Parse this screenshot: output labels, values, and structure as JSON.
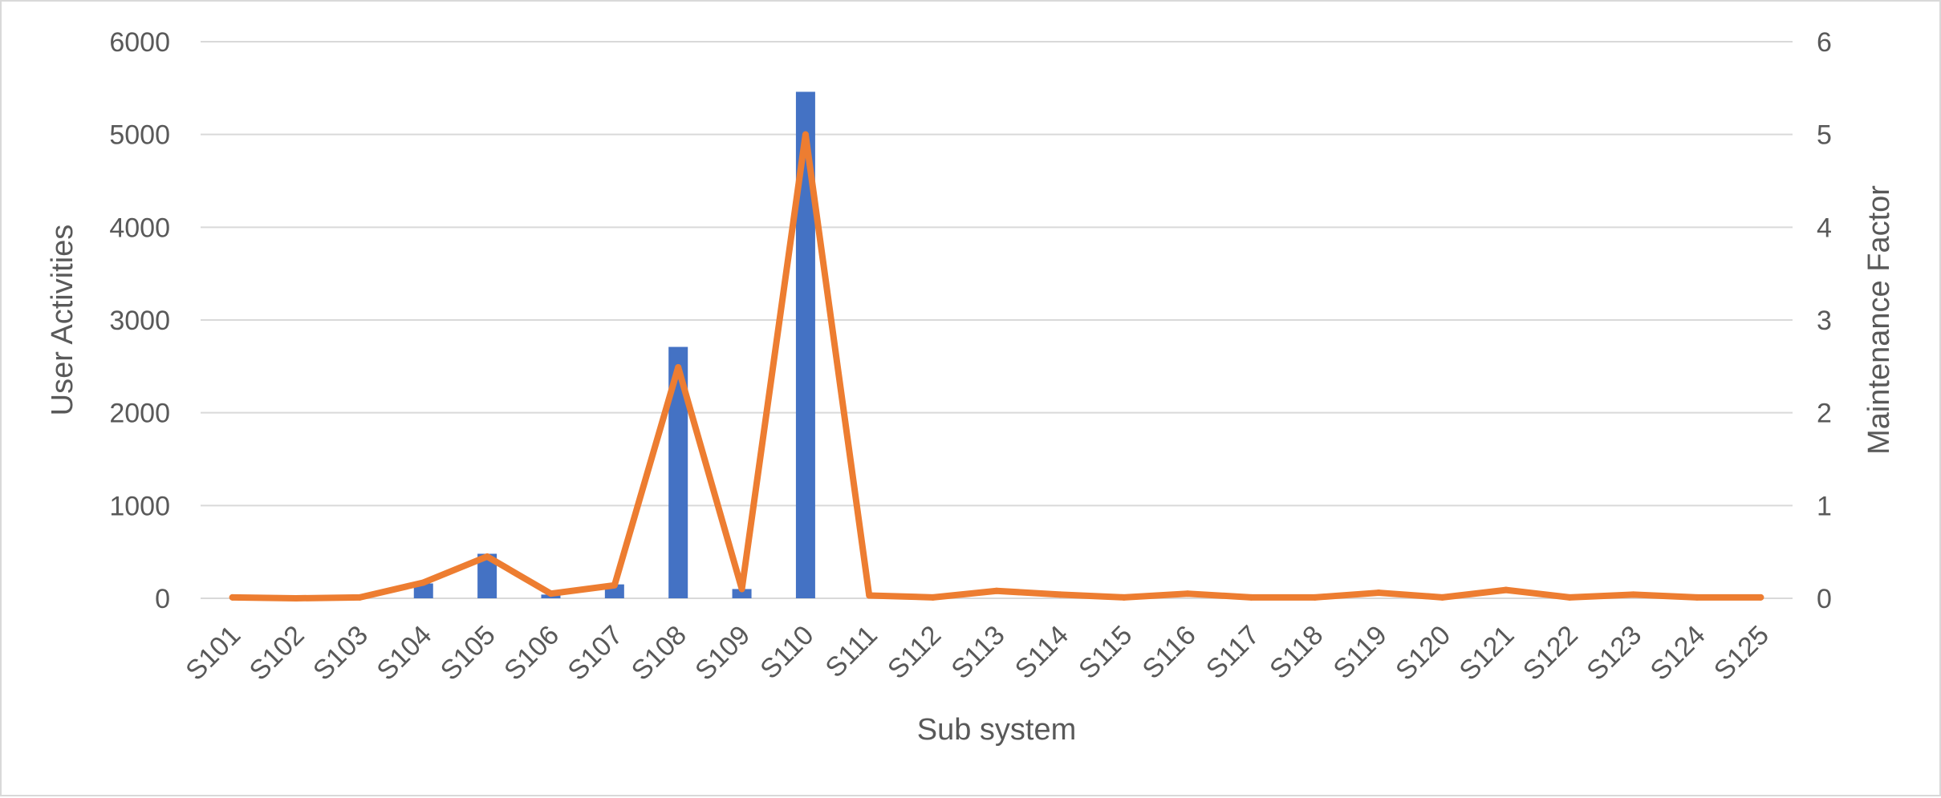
{
  "chart_data": {
    "type": "bar",
    "title": "",
    "xlabel": "Sub system",
    "ylabel": "User Activities",
    "y2label": "Maintenance Factor",
    "ylim": [
      0,
      6000
    ],
    "y2lim": [
      0,
      6
    ],
    "yticks": [
      "0",
      "1000",
      "2000",
      "3000",
      "4000",
      "5000",
      "6000"
    ],
    "y2ticks": [
      "0",
      "1",
      "2",
      "3",
      "4",
      "5",
      "6"
    ],
    "grid": true,
    "legend": "none",
    "categories": [
      "S101",
      "S102",
      "S103",
      "S104",
      "S105",
      "S106",
      "S107",
      "S108",
      "S109",
      "S110",
      "S111",
      "S112",
      "S113",
      "S114",
      "S115",
      "S116",
      "S117",
      "S118",
      "S119",
      "S120",
      "S121",
      "S122",
      "S123",
      "S124",
      "S125"
    ],
    "series": [
      {
        "type": "bar",
        "axis": "left",
        "color": "#4472c4",
        "values": [
          0,
          0,
          0,
          160,
          480,
          40,
          150,
          2710,
          100,
          5460,
          0,
          0,
          0,
          0,
          0,
          0,
          0,
          0,
          0,
          0,
          0,
          0,
          0,
          0,
          0
        ]
      },
      {
        "type": "line",
        "axis": "right",
        "color": "#ed7d31",
        "values": [
          0.01,
          0.0,
          0.01,
          0.17,
          0.45,
          0.05,
          0.14,
          2.49,
          0.1,
          5.0,
          0.03,
          0.01,
          0.08,
          0.04,
          0.01,
          0.05,
          0.01,
          0.01,
          0.06,
          0.01,
          0.09,
          0.01,
          0.04,
          0.01,
          0.01
        ]
      }
    ]
  }
}
